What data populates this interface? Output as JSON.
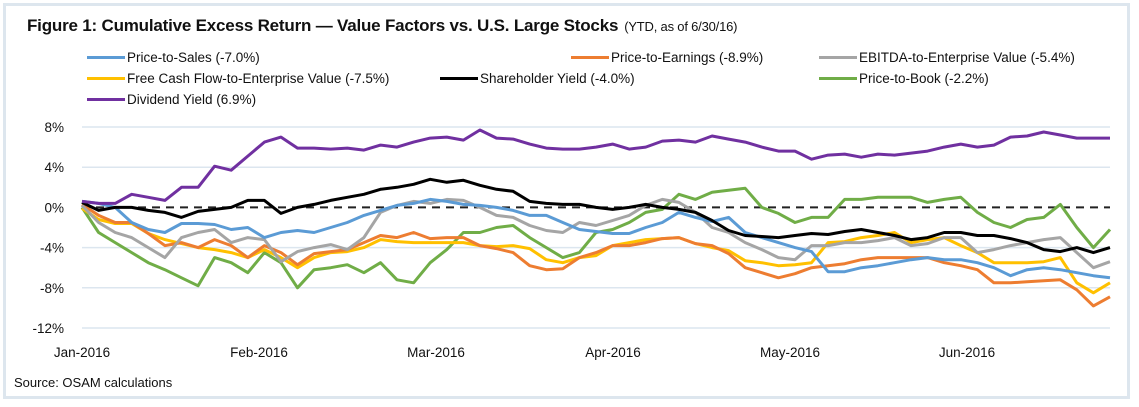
{
  "chart_data": {
    "type": "line",
    "title": "Figure 1: Cumulative Excess Return — Value Factors vs. U.S. Large Stocks",
    "subtitle": "(YTD, as of 6/30/16)",
    "xlabel": "",
    "ylabel": "",
    "ylim": [
      -12,
      8
    ],
    "yticks": [
      8,
      4,
      0,
      -4,
      -8,
      -12
    ],
    "ytick_labels": [
      "8%",
      "4%",
      "0%",
      "-4%",
      "-8%",
      "-12%"
    ],
    "xtick_labels": [
      "Jan-2016",
      "Feb-2016",
      "Mar-2016",
      "Apr-2016",
      "May-2016",
      "Jun-2016"
    ],
    "x_range_months": [
      0,
      6
    ],
    "grid": "horizontal",
    "zero_line": "dashed",
    "legend_position": "top",
    "source": "Source: OSAM calculations",
    "x": [
      0.0,
      0.1,
      0.2,
      0.3,
      0.4,
      0.5,
      0.6,
      0.7,
      0.8,
      0.9,
      1.0,
      1.1,
      1.2,
      1.3,
      1.4,
      1.5,
      1.6,
      1.7,
      1.8,
      1.9,
      2.0,
      2.1,
      2.2,
      2.3,
      2.4,
      2.5,
      2.6,
      2.7,
      2.8,
      2.9,
      3.0,
      3.1,
      3.2,
      3.3,
      3.4,
      3.5,
      3.6,
      3.7,
      3.8,
      3.9,
      4.0,
      4.1,
      4.2,
      4.3,
      4.4,
      4.5,
      4.6,
      4.7,
      4.8,
      4.9,
      5.0,
      5.1,
      5.2,
      5.3,
      5.4,
      5.5,
      5.6,
      5.7,
      5.8,
      5.9,
      6.0,
      6.1,
      6.2
    ],
    "series": [
      {
        "name": "Price-to-Sales (-7.0%)",
        "color": "#5b9bd5",
        "values": [
          0.6,
          0.4,
          0.0,
          -1.5,
          -2.2,
          -2.5,
          -1.6,
          -1.6,
          -1.7,
          -2.2,
          -2.0,
          -3.0,
          -2.5,
          -2.3,
          -2.5,
          -2.0,
          -1.5,
          -0.8,
          -0.3,
          0.2,
          0.4,
          0.8,
          0.6,
          0.3,
          0.2,
          0.0,
          -0.3,
          -0.8,
          -0.8,
          -1.5,
          -2.2,
          -2.4,
          -2.6,
          -2.6,
          -2.0,
          -1.5,
          -0.5,
          -1.0,
          -1.4,
          -1.0,
          -2.5,
          -3.0,
          -3.5,
          -4.0,
          -4.4,
          -6.4,
          -6.4,
          -6.0,
          -5.8,
          -5.5,
          -5.2,
          -5.0,
          -5.2,
          -5.2,
          -5.5,
          -6.0,
          -6.8,
          -6.2,
          -6.0,
          -6.2,
          -6.5,
          -6.8,
          -7.0
        ]
      },
      {
        "name": "Price-to-Earnings (-8.9%)",
        "color": "#ed7d31",
        "values": [
          0.3,
          -0.8,
          -1.5,
          -1.5,
          -2.6,
          -3.8,
          -3.5,
          -4.0,
          -3.2,
          -3.8,
          -5.0,
          -3.8,
          -4.5,
          -5.7,
          -4.6,
          -4.4,
          -4.2,
          -3.5,
          -2.8,
          -3.0,
          -2.5,
          -3.1,
          -3.0,
          -3.0,
          -3.8,
          -4.1,
          -4.5,
          -5.8,
          -6.2,
          -6.1,
          -5.0,
          -4.5,
          -3.8,
          -3.8,
          -3.5,
          -3.1,
          -3.0,
          -3.6,
          -3.8,
          -4.6,
          -6.0,
          -6.5,
          -7.0,
          -6.6,
          -6.0,
          -5.8,
          -5.6,
          -5.2,
          -5.0,
          -5.0,
          -5.0,
          -5.0,
          -5.5,
          -5.8,
          -6.2,
          -7.5,
          -7.5,
          -7.4,
          -7.3,
          -7.2,
          -8.2,
          -9.8,
          -8.9
        ]
      },
      {
        "name": "EBITDA-to-Enterprise Value (-5.4%)",
        "color": "#a5a5a5",
        "values": [
          0.2,
          -1.5,
          -2.5,
          -3.0,
          -4.0,
          -5.0,
          -3.0,
          -2.5,
          -2.2,
          -3.5,
          -3.0,
          -3.2,
          -5.4,
          -4.4,
          -4.0,
          -3.7,
          -4.2,
          -3.0,
          -0.5,
          0.2,
          0.6,
          0.4,
          0.8,
          0.7,
          0.0,
          -0.8,
          -1.0,
          -1.8,
          -2.3,
          -2.5,
          -1.5,
          -1.8,
          -1.3,
          -0.8,
          0.2,
          0.8,
          0.5,
          -0.5,
          -2.0,
          -2.5,
          -3.5,
          -4.2,
          -5.0,
          -5.2,
          -3.8,
          -3.8,
          -3.5,
          -3.5,
          -3.3,
          -3.0,
          -3.8,
          -3.6,
          -3.0,
          -3.0,
          -4.5,
          -4.2,
          -3.8,
          -3.5,
          -3.2,
          -3.0,
          -4.5,
          -6.0,
          -5.4
        ]
      },
      {
        "name": "Free Cash Flow-to-Enterprise Value (-7.5%)",
        "color": "#ffc000",
        "values": [
          -0.1,
          -1.2,
          -1.6,
          -1.6,
          -2.6,
          -3.2,
          -3.6,
          -4.0,
          -4.2,
          -4.5,
          -5.0,
          -4.2,
          -5.0,
          -6.0,
          -5.0,
          -4.5,
          -4.4,
          -4.0,
          -3.2,
          -3.4,
          -3.5,
          -3.5,
          -3.5,
          -3.5,
          -3.8,
          -3.9,
          -3.8,
          -4.1,
          -5.2,
          -5.5,
          -5.0,
          -4.8,
          -3.8,
          -3.5,
          -3.2,
          -3.1,
          -3.0,
          -3.6,
          -4.0,
          -4.3,
          -5.3,
          -5.5,
          -5.8,
          -5.7,
          -5.5,
          -3.5,
          -3.4,
          -3.0,
          -2.8,
          -2.5,
          -3.5,
          -3.2,
          -3.0,
          -3.8,
          -4.5,
          -5.5,
          -5.5,
          -5.5,
          -5.4,
          -5.0,
          -7.5,
          -8.5,
          -7.5
        ]
      },
      {
        "name": "Shareholder Yield (-4.0%)",
        "color": "#000000",
        "values": [
          0.5,
          -0.3,
          0.0,
          0.0,
          -0.3,
          -0.5,
          -1.0,
          -0.4,
          -0.2,
          0.0,
          0.7,
          0.7,
          -0.6,
          0.0,
          0.3,
          0.7,
          1.0,
          1.3,
          1.8,
          2.0,
          2.3,
          2.8,
          2.5,
          2.7,
          2.2,
          1.8,
          1.6,
          0.6,
          0.4,
          0.3,
          0.3,
          0.0,
          -0.2,
          0.0,
          0.3,
          0.0,
          -0.2,
          -0.5,
          -1.3,
          -2.3,
          -2.8,
          -2.9,
          -3.0,
          -2.8,
          -2.6,
          -2.7,
          -2.4,
          -2.2,
          -2.5,
          -2.8,
          -3.2,
          -3.0,
          -2.5,
          -2.5,
          -2.8,
          -2.8,
          -3.1,
          -3.5,
          -4.2,
          -4.4,
          -4.0,
          -4.5,
          -4.0
        ]
      },
      {
        "name": "Price-to-Book (-2.2%)",
        "color": "#70ad47",
        "values": [
          0.0,
          -2.5,
          -3.5,
          -4.5,
          -5.5,
          -6.2,
          -7.0,
          -7.8,
          -5.0,
          -5.5,
          -6.5,
          -4.5,
          -5.5,
          -8.0,
          -6.2,
          -6.0,
          -5.7,
          -6.5,
          -5.5,
          -7.2,
          -7.5,
          -5.5,
          -4.2,
          -2.5,
          -2.5,
          -2.0,
          -1.8,
          -3.0,
          -4.0,
          -5.0,
          -4.5,
          -2.5,
          -2.2,
          -1.5,
          -0.5,
          -0.2,
          1.3,
          0.8,
          1.5,
          1.7,
          1.9,
          0.0,
          -0.6,
          -1.5,
          -1.0,
          -1.0,
          0.8,
          0.8,
          1.0,
          1.0,
          1.0,
          0.5,
          0.8,
          1.0,
          -0.5,
          -1.5,
          -2.0,
          -1.2,
          -1.0,
          0.3,
          -2.0,
          -4.0,
          -2.2
        ]
      },
      {
        "name": "Dividend Yield (6.9%)",
        "color": "#7030a0",
        "values": [
          0.6,
          0.4,
          0.4,
          1.3,
          1.0,
          0.7,
          2.0,
          2.0,
          4.1,
          3.7,
          5.1,
          6.5,
          7.0,
          5.9,
          5.9,
          5.8,
          5.9,
          5.7,
          6.2,
          6.0,
          6.5,
          6.9,
          7.0,
          6.7,
          7.7,
          6.9,
          6.8,
          6.3,
          5.9,
          5.8,
          5.8,
          6.0,
          6.3,
          5.8,
          6.0,
          6.6,
          6.7,
          6.5,
          7.1,
          6.8,
          6.5,
          6.0,
          5.6,
          5.6,
          4.8,
          5.2,
          5.3,
          5.0,
          5.3,
          5.2,
          5.4,
          5.6,
          6.0,
          6.3,
          6.0,
          6.2,
          7.0,
          7.1,
          7.5,
          7.2,
          6.9,
          6.9,
          6.9
        ]
      }
    ]
  }
}
